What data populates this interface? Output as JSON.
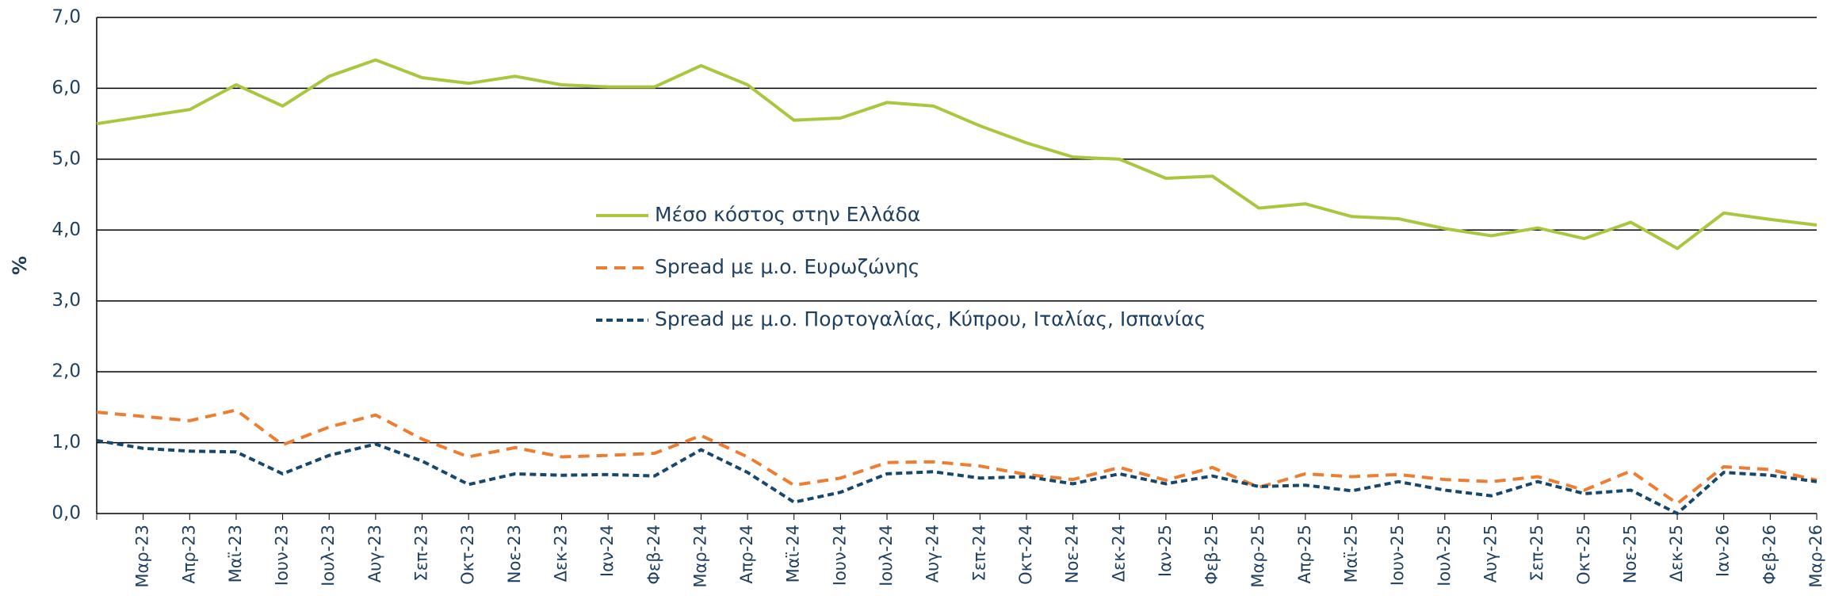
{
  "chart_data": {
    "type": "line",
    "y_label": "%",
    "categories": [
      null,
      "Μαρ-23",
      "Απρ-23",
      "Μαϊ-23",
      "Ιουν-23",
      "Ιουλ-23",
      "Αυγ-23",
      "Σεπ-23",
      "Οκτ-23",
      "Νοε-23",
      "Δεκ-23",
      "Ιαν-24",
      "Φεβ-24",
      "Μαρ-24",
      "Απρ-24",
      "Μαϊ-24",
      "Ιουν-24",
      "Ιουλ-24",
      "Αυγ-24",
      "Σεπ-24",
      "Οκτ-24",
      "Νοε-24",
      "Δεκ-24",
      "Ιαν-25",
      "Φεβ-25",
      "Μαρ-25",
      "Απρ-25",
      "Μαϊ-25",
      "Ιουν-25",
      "Ιουλ-25",
      "Αυγ-25",
      "Σεπ-25",
      "Οκτ-25",
      "Νοε-25",
      "Δεκ-25",
      "Ιαν-26",
      "Φεβ-26",
      "Μαρ-26"
    ],
    "series": [
      {
        "name": "Μέσο κόστος στην Ελλάδα",
        "color": "#a9c73e",
        "dash": "none",
        "values": [
          5.5,
          5.6,
          5.7,
          6.05,
          5.75,
          6.17,
          6.4,
          6.15,
          6.07,
          6.17,
          6.05,
          6.02,
          6.02,
          6.32,
          6.05,
          5.55,
          5.58,
          5.8,
          5.75,
          5.47,
          5.23,
          5.03,
          5.0,
          4.73,
          4.76,
          4.31,
          4.37,
          4.19,
          4.16,
          4.02,
          3.92,
          4.03,
          3.88,
          4.11,
          3.74,
          4.24,
          4.15,
          4.07
        ]
      },
      {
        "name": "Spread με μ.ο. Ευρωζώνης",
        "color": "#ed7d31",
        "dash": "14,9",
        "values": [
          1.43,
          1.37,
          1.31,
          1.46,
          0.97,
          1.22,
          1.39,
          1.05,
          0.8,
          0.93,
          0.8,
          0.82,
          0.85,
          1.1,
          0.8,
          0.4,
          0.5,
          0.72,
          0.73,
          0.67,
          0.55,
          0.48,
          0.65,
          0.47,
          0.65,
          0.37,
          0.56,
          0.52,
          0.55,
          0.48,
          0.45,
          0.52,
          0.33,
          0.6,
          0.14,
          0.66,
          0.62,
          0.47
        ]
      },
      {
        "name": "Spread με μ.ο. Πορτογαλίας, Κύπρου, Ιταλίας, Ισπανίας",
        "color": "#17476b",
        "dash": "8,5",
        "values": [
          1.03,
          0.92,
          0.88,
          0.87,
          0.56,
          0.82,
          0.98,
          0.74,
          0.41,
          0.56,
          0.54,
          0.55,
          0.53,
          0.9,
          0.58,
          0.16,
          0.3,
          0.56,
          0.59,
          0.5,
          0.52,
          0.42,
          0.56,
          0.42,
          0.53,
          0.38,
          0.4,
          0.32,
          0.45,
          0.33,
          0.25,
          0.45,
          0.28,
          0.33,
          0.0,
          0.58,
          0.54,
          0.45
        ]
      }
    ],
    "ylim": [
      0,
      7
    ],
    "yticks": [
      {
        "value": 0,
        "label": "0,0"
      },
      {
        "value": 1,
        "label": "1,0"
      },
      {
        "value": 2,
        "label": "2,0"
      },
      {
        "value": 3,
        "label": "3,0"
      },
      {
        "value": 4,
        "label": "4,0"
      },
      {
        "value": 5,
        "label": "5,0"
      },
      {
        "value": 6,
        "label": "6,0"
      },
      {
        "value": 7,
        "label": "7,0"
      }
    ],
    "grid": true
  }
}
